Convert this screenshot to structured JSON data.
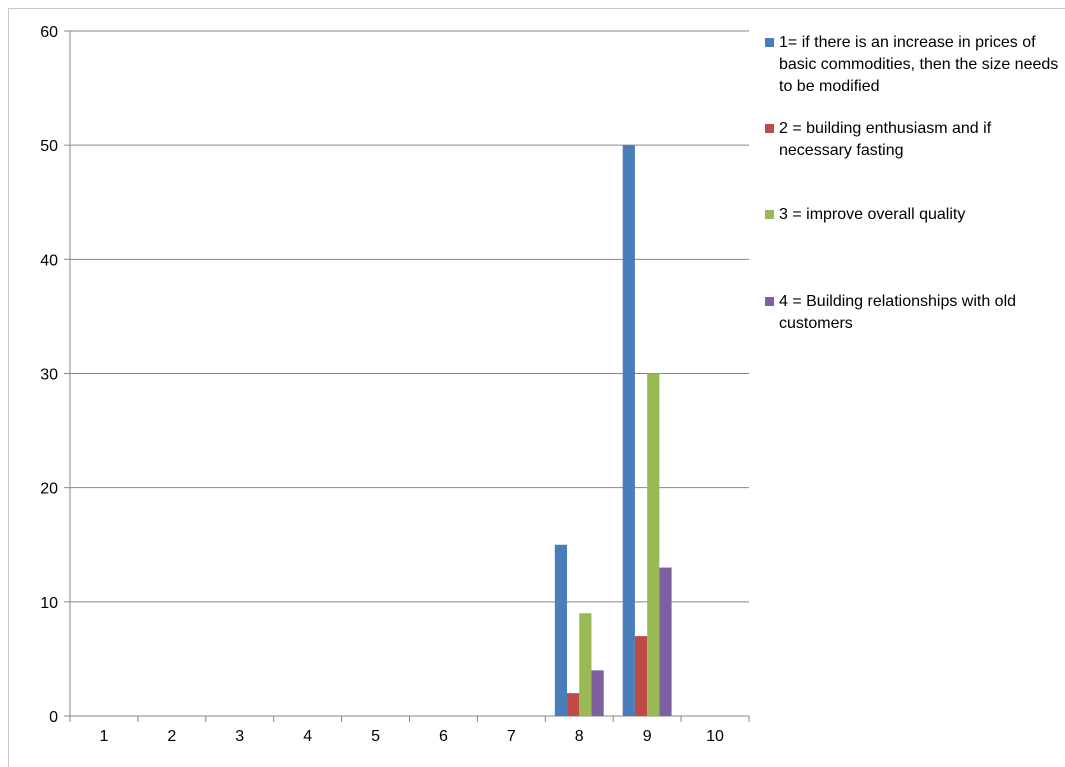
{
  "chart_data": {
    "type": "bar",
    "categories": [
      "1",
      "2",
      "3",
      "4",
      "5",
      "6",
      "7",
      "8",
      "9",
      "10"
    ],
    "series": [
      {
        "name": "1= if there is an increase in prices of basic commodities, then the size needs to be modified",
        "color": "#4a7ebb",
        "values": [
          0,
          0,
          0,
          0,
          0,
          0,
          0,
          15,
          50,
          0
        ]
      },
      {
        "name": "2 = building enthusiasm and if necessary fasting",
        "color": "#be4b48",
        "values": [
          0,
          0,
          0,
          0,
          0,
          0,
          0,
          2,
          7,
          0
        ]
      },
      {
        "name": "3 = improve overall quality",
        "color": "#98b954",
        "values": [
          0,
          0,
          0,
          0,
          0,
          0,
          0,
          9,
          30,
          0
        ]
      },
      {
        "name": "4 = Building relationships with old customers",
        "color": "#7d60a0",
        "values": [
          0,
          0,
          0,
          0,
          0,
          0,
          0,
          4,
          13,
          0
        ]
      }
    ],
    "y_ticks": [
      "0",
      "10",
      "20",
      "30",
      "40",
      "50",
      "60"
    ],
    "ylim": [
      0,
      60
    ],
    "grid": true,
    "legend_position": "right"
  }
}
